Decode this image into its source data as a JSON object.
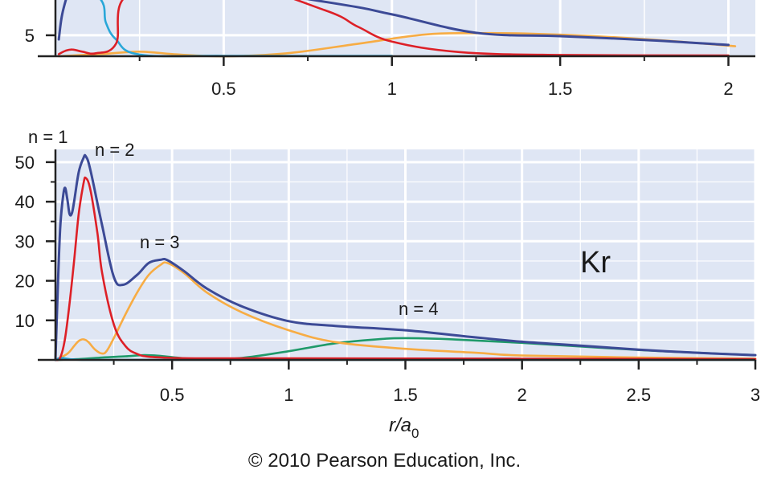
{
  "copyright": "© 2010 Pearson Education, Inc.",
  "colors": {
    "plot_bg": "#dfe6f4",
    "grid": "#ffffff",
    "axis": "#222222",
    "total": "#3c4a96",
    "n1": "#29a7d8",
    "n2": "#dd2027",
    "n3": "#f7ac44",
    "n4": "#1f9a6a"
  },
  "chart_data": [
    {
      "type": "line",
      "title": "",
      "xlabel": "",
      "ylabel": "",
      "xlim": [
        0,
        2.08
      ],
      "ylim": [
        0,
        14
      ],
      "x_ticks": [
        0.5,
        1,
        1.5,
        2
      ],
      "x_tick_labels": [
        "0.5",
        "1",
        "1.5",
        "2"
      ],
      "y_ticks": [
        5
      ],
      "y_tick_labels": [
        "5"
      ],
      "grid": true,
      "series": [
        {
          "key": "total",
          "x": [
            0.01,
            0.02,
            0.04,
            0.06,
            0.8,
            1,
            1.25,
            1.5,
            1.75,
            2
          ],
          "values": [
            4,
            10,
            16,
            22,
            13,
            10,
            5.6,
            4.8,
            3.9,
            2.7
          ]
        },
        {
          "key": "n1",
          "x": [
            0.01,
            0.13,
            0.15,
            0.18,
            0.25,
            0.5,
            1
          ],
          "values": [
            20,
            14,
            8,
            4,
            0.4,
            0.1,
            0.1
          ]
        },
        {
          "key": "n2",
          "x": [
            0.01,
            0.03,
            0.05,
            0.08,
            0.12,
            0.18,
            0.22,
            0.5,
            0.8,
            0.9,
            1,
            1.2,
            1.5,
            2
          ],
          "values": [
            0.5,
            1.3,
            1.6,
            1.1,
            0.7,
            3,
            15,
            18,
            11,
            7,
            3.5,
            1,
            0.3,
            0.2
          ]
        },
        {
          "key": "n3",
          "x": [
            0.01,
            0.15,
            0.25,
            0.35,
            0.45,
            0.55,
            0.7,
            0.9,
            1.1,
            1.25,
            1.4,
            1.6,
            1.8,
            2.02
          ],
          "values": [
            0,
            0.6,
            1.1,
            0.5,
            0.05,
            0.05,
            0.8,
            3,
            5.2,
            5.5,
            5.4,
            4.8,
            3.8,
            2.4
          ]
        }
      ]
    },
    {
      "type": "line",
      "title": "",
      "xlabel": "r/a0",
      "ylabel": "",
      "xlim": [
        0,
        3
      ],
      "ylim": [
        0,
        52
      ],
      "x_ticks": [
        0.5,
        1,
        1.5,
        2,
        2.5,
        3
      ],
      "x_tick_labels": [
        "0.5",
        "1",
        "1.5",
        "2",
        "2.5",
        "3"
      ],
      "y_ticks": [
        10,
        20,
        30,
        40,
        50
      ],
      "y_tick_labels": [
        "10",
        "20",
        "30",
        "40",
        "50"
      ],
      "grid": true,
      "series": [
        {
          "key": "total",
          "x": [
            0,
            0.01,
            0.02,
            0.03,
            0.04,
            0.05,
            0.06,
            0.07,
            0.08,
            0.1,
            0.12,
            0.13,
            0.15,
            0.2,
            0.25,
            0.29,
            0.35,
            0.4,
            0.45,
            0.48,
            0.55,
            0.65,
            0.8,
            1,
            1.2,
            1.5,
            1.75,
            2,
            2.25,
            2.5,
            2.75,
            3
          ],
          "values": [
            0,
            18,
            33,
            40,
            43.5,
            41,
            37,
            37,
            40,
            47.5,
            51,
            51.5,
            48,
            34,
            21,
            19,
            21.5,
            24.5,
            25.3,
            25.2,
            22.5,
            18,
            13.5,
            9.8,
            8.6,
            7.5,
            6,
            4.6,
            3.6,
            2.6,
            1.8,
            1.2
          ]
        },
        {
          "key": "n1",
          "x": [
            0,
            0.01,
            0.02,
            0.03,
            0.05,
            0.07,
            0.1,
            0.15,
            0.2,
            0.5,
            3
          ],
          "values": [
            0,
            0.3,
            0.5,
            0.5,
            0.3,
            0.15,
            0.05,
            0,
            0,
            0,
            0
          ]
        },
        {
          "key": "n2",
          "x": [
            0,
            0.02,
            0.04,
            0.06,
            0.08,
            0.1,
            0.12,
            0.13,
            0.15,
            0.18,
            0.2,
            0.25,
            0.3,
            0.35,
            0.4,
            0.5,
            0.6,
            1,
            2,
            3
          ],
          "values": [
            0,
            0.5,
            5,
            14,
            25,
            37,
            44.5,
            46,
            43,
            32,
            22,
            9,
            3.5,
            1.5,
            0.8,
            0.5,
            0.4,
            0.4,
            0.3,
            0.2
          ]
        },
        {
          "key": "n3",
          "x": [
            0,
            0.05,
            0.08,
            0.1,
            0.12,
            0.14,
            0.17,
            0.2,
            0.22,
            0.25,
            0.3,
            0.35,
            0.4,
            0.45,
            0.48,
            0.55,
            0.65,
            0.8,
            1,
            1.2,
            1.5,
            1.8,
            2,
            2.5,
            3
          ],
          "values": [
            0,
            1.5,
            3.5,
            4.8,
            5.2,
            4.6,
            2.6,
            1.6,
            2.3,
            5.5,
            11.5,
            17,
            21.5,
            24,
            24.5,
            22,
            17,
            12,
            7.5,
            4.5,
            2.8,
            1.8,
            1.1,
            0.6,
            0.3
          ]
        },
        {
          "key": "n4",
          "x": [
            0,
            0.1,
            0.2,
            0.3,
            0.38,
            0.45,
            0.55,
            0.65,
            0.8,
            1,
            1.2,
            1.4,
            1.5,
            1.7,
            2,
            2.3,
            2.6,
            3
          ],
          "values": [
            0,
            0.2,
            0.6,
            0.9,
            1.2,
            1,
            0.4,
            0.2,
            0.5,
            2.2,
            4.2,
            5.3,
            5.5,
            5.2,
            4.3,
            3.2,
            2.2,
            1.2
          ]
        }
      ],
      "annotations": [
        {
          "text": "n = 1",
          "x": 0.0,
          "y": 54
        },
        {
          "text": "n = 2",
          "x": 0.17,
          "y": 51
        },
        {
          "text": "n = 3",
          "x": 0.36,
          "y": 28
        },
        {
          "text": "n = 4",
          "x": 1.5,
          "y": 11.5
        },
        {
          "text": "Kr",
          "x": 2.37,
          "y": 22
        }
      ]
    }
  ]
}
